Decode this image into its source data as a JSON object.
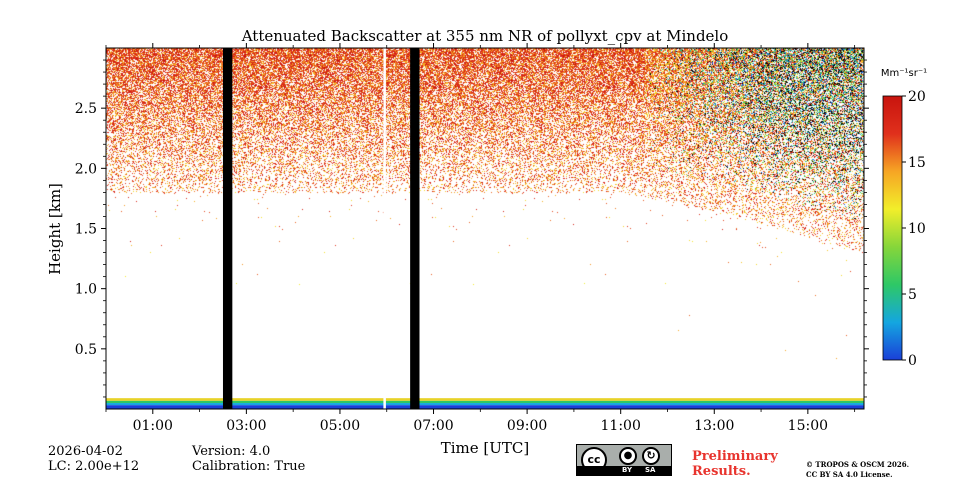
{
  "chart_data": {
    "type": "heatmap",
    "title": "Attenuated Backscatter at 355 nm NR of pollyxt_cpv at Mindelo",
    "xlabel": "Time [UTC]",
    "ylabel": "Height [km]",
    "x_range_hours": [
      0.0,
      16.2
    ],
    "ylim_km": [
      0.0,
      3.0
    ],
    "x_ticks": [
      {
        "hour": 1,
        "label": "01:00"
      },
      {
        "hour": 3,
        "label": "03:00"
      },
      {
        "hour": 5,
        "label": "05:00"
      },
      {
        "hour": 7,
        "label": "07:00"
      },
      {
        "hour": 9,
        "label": "09:00"
      },
      {
        "hour": 11,
        "label": "11:00"
      },
      {
        "hour": 13,
        "label": "13:00"
      },
      {
        "hour": 15,
        "label": "15:00"
      }
    ],
    "y_ticks": [
      {
        "value": 0.5,
        "label": "0.5"
      },
      {
        "value": 1.0,
        "label": "1.0"
      },
      {
        "value": 1.5,
        "label": "1.5"
      },
      {
        "value": 2.0,
        "label": "2.0"
      },
      {
        "value": 2.5,
        "label": "2.5"
      }
    ],
    "colorbar": {
      "label": "Mm⁻¹sr⁻¹",
      "min": 0,
      "max": 20,
      "ticks": [
        {
          "value": 0,
          "label": "0"
        },
        {
          "value": 5,
          "label": "5"
        },
        {
          "value": 10,
          "label": "10"
        },
        {
          "value": 15,
          "label": "15"
        },
        {
          "value": 20,
          "label": "20"
        }
      ],
      "colors": [
        "#1a3fd8",
        "#14a6e0",
        "#2ec866",
        "#86d63a",
        "#f2ee2a",
        "#f6a524",
        "#e0301c",
        "#c8140e"
      ]
    },
    "no_data_intervals_hours": [
      [
        2.5,
        2.7
      ],
      [
        6.5,
        6.7
      ]
    ],
    "gap_line_hour": 5.95,
    "layers": {
      "aerosol_layer_top_km": 3.0,
      "aerosol_layer_base_km_early": 1.8,
      "aerosol_layer_base_km_late": 1.3,
      "near_surface_layer_km": [
        0.0,
        0.09
      ]
    }
  },
  "footer": {
    "date": "2026-04-02",
    "lc": "LC: 2.00e+12",
    "version": "Version: 4.0",
    "calibration": "Calibration: True",
    "preliminary_line1": "Preliminary",
    "preliminary_line2": "Results.",
    "copyright_line1": "© TROPOS & OSCM 2026.",
    "copyright_line2": "CC BY SA 4.0 License.",
    "license_badge": {
      "cc": "cc",
      "by": "BY",
      "sa": "SA"
    }
  },
  "colors": {
    "no_data": "#000000",
    "accent_red": "#e8342e"
  }
}
